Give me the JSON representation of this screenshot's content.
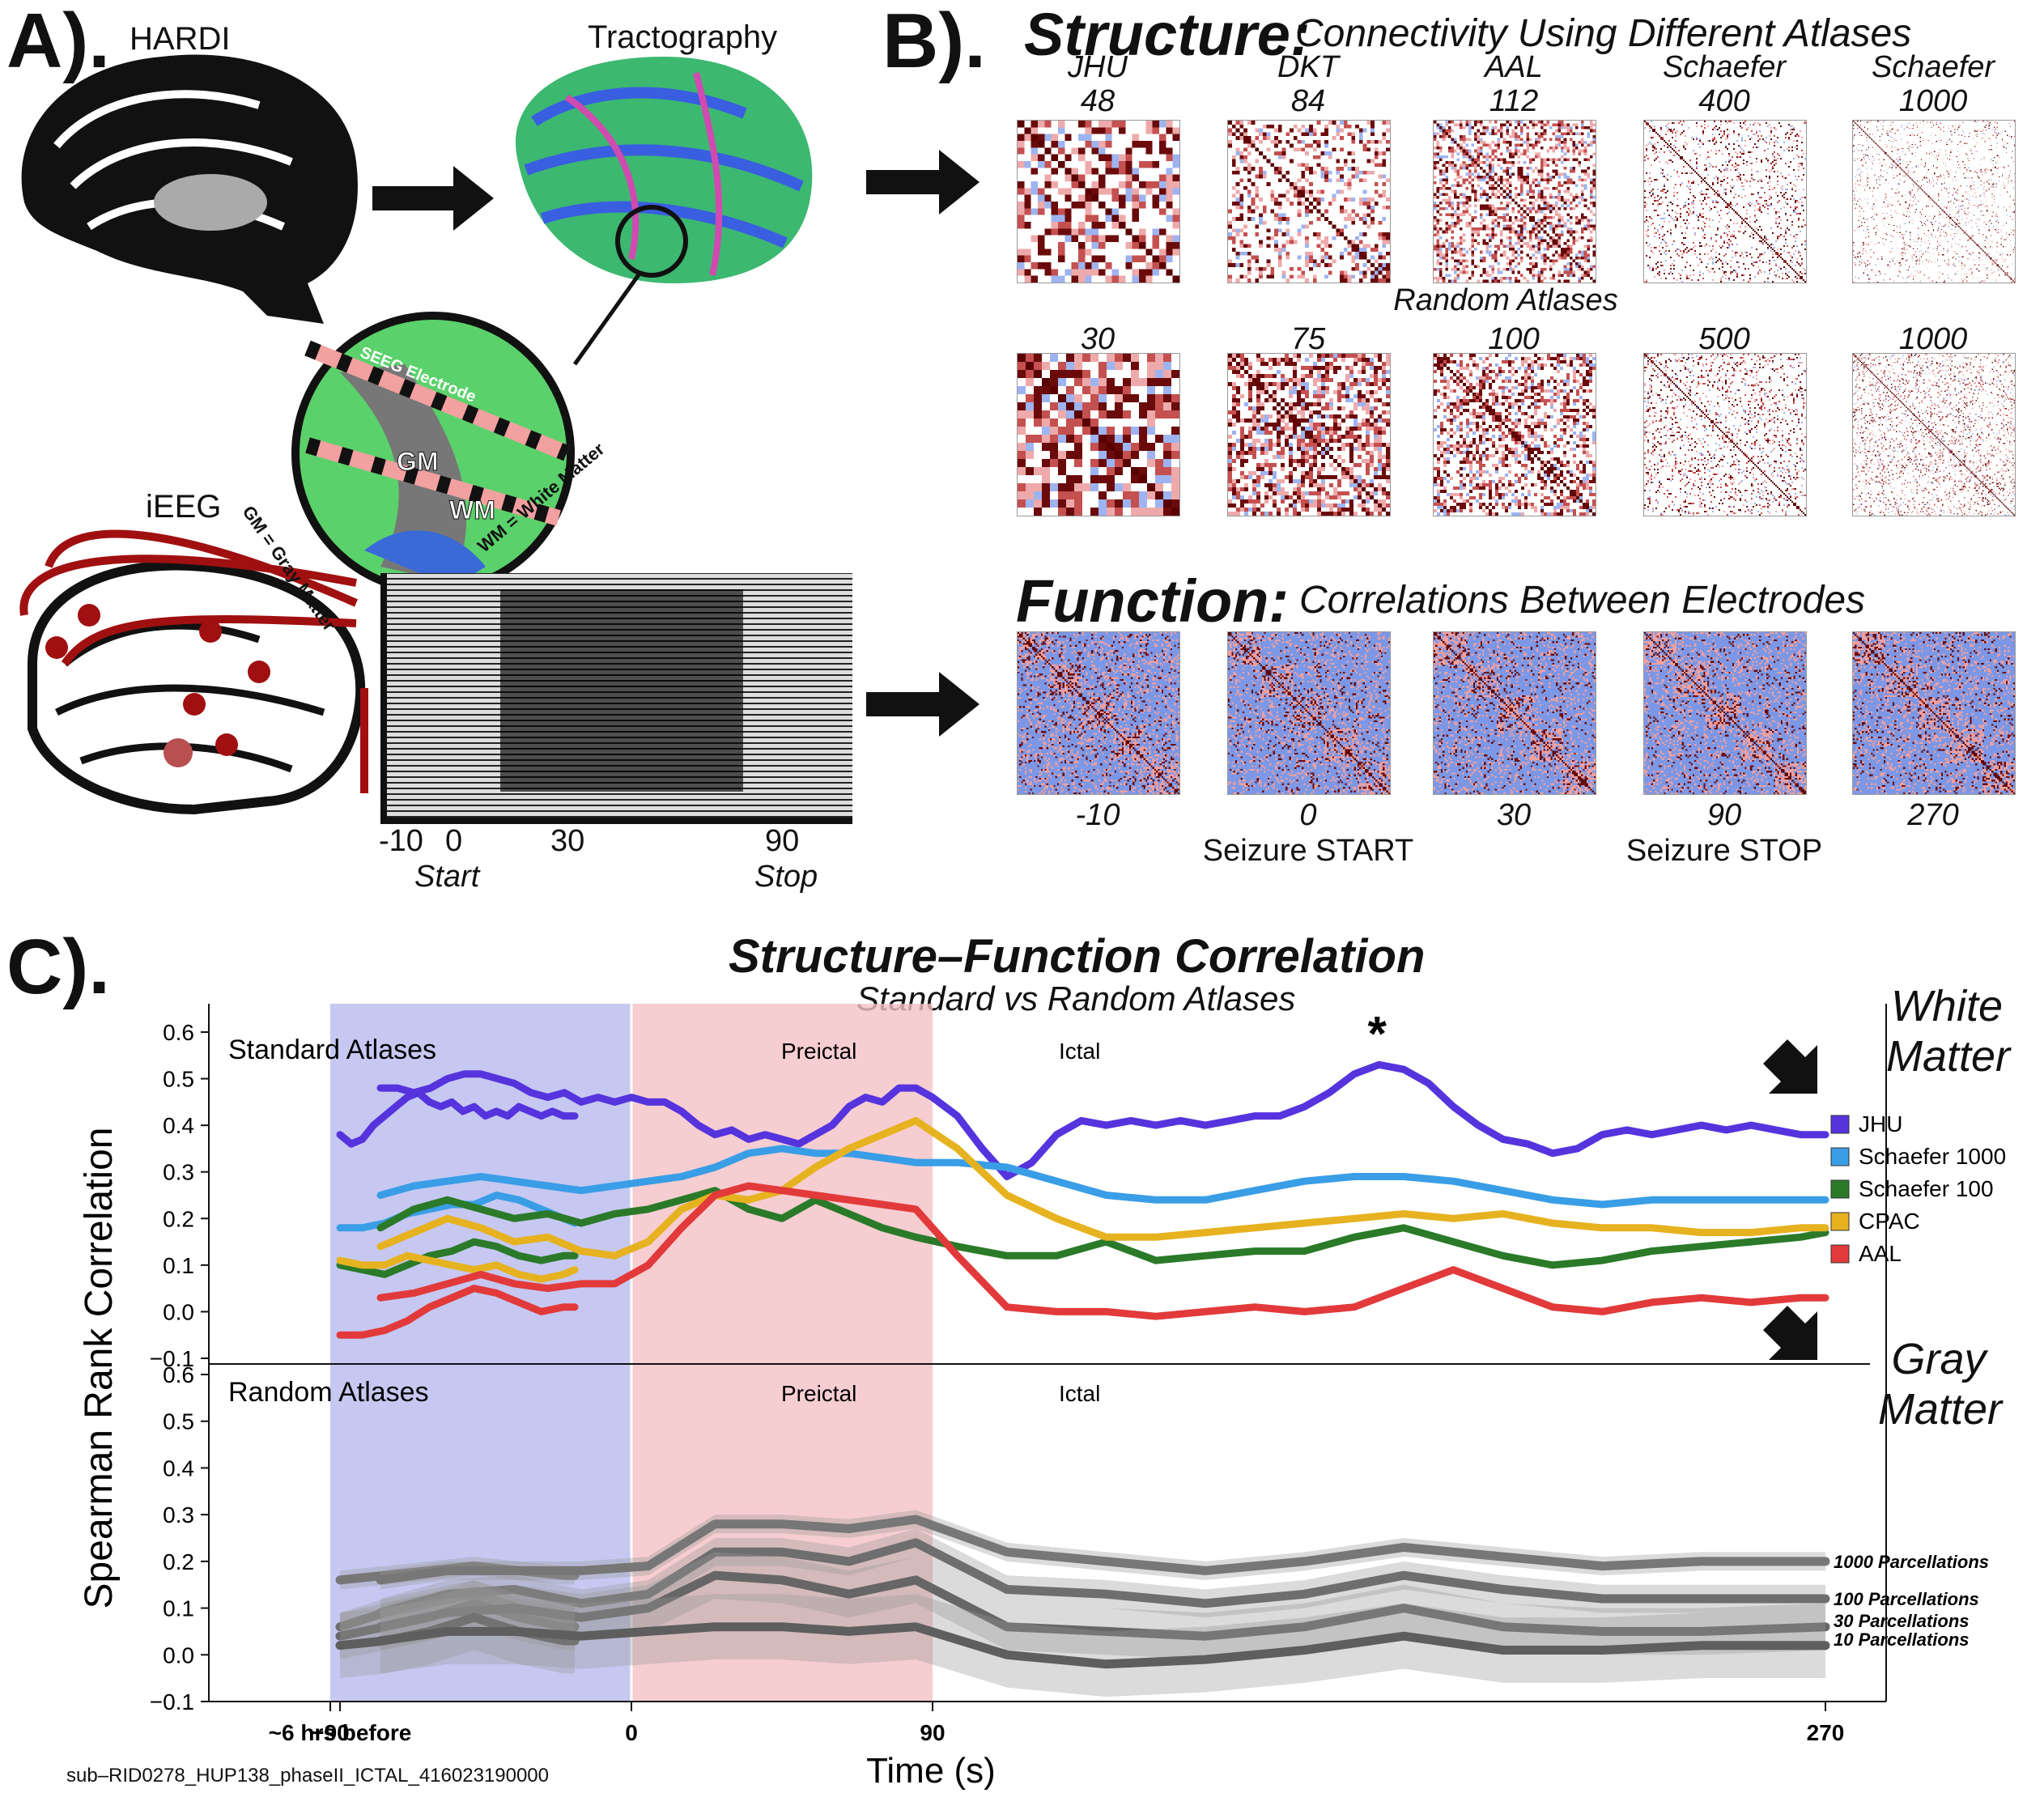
{
  "panel_a": {
    "letter": "A).",
    "hardi_label": "HARDI",
    "tractography_label": "Tractography",
    "ieeg_label": "iEEG",
    "inset": {
      "electrode": "SEEG Electrode",
      "gm": "GM",
      "wm": "WM",
      "gm_def": "GM = Gray Matter",
      "wm_def": "WM = White Matter"
    },
    "eeg_ticks": [
      "-10",
      "0",
      "30",
      "90"
    ],
    "eeg_start": "Start",
    "eeg_stop": "Stop",
    "colors": {
      "electrode": "#a01010"
    }
  },
  "panel_b": {
    "letter": "B).",
    "structure_title": "Structure:",
    "structure_sub": "Connectivity Using Different Atlases",
    "standard_atlases": [
      {
        "name": "JHU",
        "n": "48"
      },
      {
        "name": "DKT",
        "n": "84"
      },
      {
        "name": "AAL",
        "n": "112"
      },
      {
        "name": "Schaefer",
        "n": "400"
      },
      {
        "name": "Schaefer",
        "n": "1000"
      }
    ],
    "random_label": "Random Atlases",
    "random_atlases": [
      "30",
      "75",
      "100",
      "500",
      "1000"
    ],
    "function_title": "Function:",
    "function_sub": "Correlations Between Electrodes",
    "function_times": [
      "-10",
      "0",
      "30",
      "90",
      "270"
    ],
    "function_events": [
      "",
      "Seizure START",
      "",
      "Seizure STOP",
      ""
    ]
  },
  "panel_c": {
    "letter": "C).",
    "title": "Structure–Function Correlation",
    "subtitle": "Standard vs Random Atlases",
    "y_axis_label": "Spearman Rank Correlation",
    "x_axis_label": "Time (s)",
    "footnote": "sub–RID0278_HUP138_phaseII_ICTAL_416023190000",
    "star": "*",
    "white_matter": "White Matter",
    "gray_matter": "Gray Matter",
    "preictal_label": "Preictal",
    "ictal_label": "Ictal",
    "colors": {
      "preictal": "#b3b6ee",
      "ictal": "#f4c0c4"
    }
  },
  "chart_data": [
    {
      "type": "line",
      "title": "Standard Atlases",
      "ylabel": "Spearman Rank Correlation",
      "ylim": [
        -0.1,
        0.6
      ],
      "yticks": [
        "0.6",
        "0.5",
        "0.4",
        "0.3",
        "0.2",
        "0.1",
        "0.0",
        "−0.1"
      ],
      "xticks": [
        "~6 hrs before",
        "−90",
        "0",
        "90",
        "270"
      ],
      "grid": false,
      "legend": "right",
      "series": [
        {
          "name": "JHU",
          "color": "#5533dd",
          "seg1_x": [
            -600,
            -590,
            -580,
            -570,
            -560,
            -550,
            -540,
            -530,
            -520,
            -510,
            -500,
            -490,
            -480,
            -470,
            -460,
            -450,
            -440,
            -430,
            -420,
            -410,
            -400,
            -390
          ],
          "seg1_y": [
            0.38,
            0.36,
            0.37,
            0.4,
            0.42,
            0.44,
            0.46,
            0.47,
            0.45,
            0.44,
            0.45,
            0.43,
            0.44,
            0.42,
            0.43,
            0.42,
            0.44,
            0.43,
            0.42,
            0.43,
            0.42,
            0.42
          ],
          "x": [
            -75,
            -70,
            -65,
            -60,
            -55,
            -50,
            -45,
            -40,
            -35,
            -30,
            -25,
            -20,
            -15,
            -10,
            -5,
            0,
            5,
            10,
            15,
            20,
            25,
            30,
            35,
            40,
            45,
            50,
            55,
            60,
            65,
            70,
            75,
            80,
            85,
            90,
            95,
            100,
            105,
            110,
            115,
            120,
            125,
            130,
            135,
            140,
            145,
            150,
            155,
            160,
            165,
            170,
            175,
            180,
            185,
            190,
            195,
            200,
            205,
            210,
            215,
            220,
            225,
            230,
            235,
            240,
            245,
            250,
            255,
            260,
            265,
            270
          ],
          "y": [
            0.48,
            0.48,
            0.47,
            0.48,
            0.5,
            0.51,
            0.51,
            0.5,
            0.49,
            0.47,
            0.46,
            0.47,
            0.45,
            0.46,
            0.45,
            0.46,
            0.45,
            0.45,
            0.43,
            0.4,
            0.38,
            0.39,
            0.37,
            0.38,
            0.37,
            0.36,
            0.38,
            0.4,
            0.44,
            0.46,
            0.45,
            0.48,
            0.48,
            0.46,
            0.42,
            0.35,
            0.29,
            0.32,
            0.38,
            0.41,
            0.4,
            0.41,
            0.4,
            0.41,
            0.4,
            0.41,
            0.42,
            0.42,
            0.44,
            0.47,
            0.51,
            0.53,
            0.52,
            0.49,
            0.44,
            0.4,
            0.37,
            0.36,
            0.34,
            0.35,
            0.38,
            0.39,
            0.38,
            0.39,
            0.4,
            0.39,
            0.4,
            0.39,
            0.38,
            0.38
          ]
        },
        {
          "name": "Schaefer 1000",
          "color": "#3a9ee6",
          "seg1_x": [
            -600,
            -580,
            -560,
            -540,
            -520,
            -500,
            -480,
            -460,
            -440,
            -420,
            -400,
            -390
          ],
          "seg1_y": [
            0.18,
            0.18,
            0.19,
            0.21,
            0.22,
            0.23,
            0.23,
            0.25,
            0.24,
            0.22,
            0.2,
            0.19
          ],
          "x": [
            -75,
            -65,
            -55,
            -45,
            -35,
            -25,
            -15,
            -5,
            5,
            15,
            25,
            35,
            45,
            55,
            65,
            75,
            85,
            95,
            105,
            115,
            125,
            135,
            145,
            155,
            165,
            175,
            185,
            195,
            205,
            215,
            225,
            235,
            245,
            255,
            265,
            270
          ],
          "y": [
            0.25,
            0.27,
            0.28,
            0.29,
            0.28,
            0.27,
            0.26,
            0.27,
            0.28,
            0.29,
            0.31,
            0.34,
            0.35,
            0.34,
            0.34,
            0.33,
            0.32,
            0.32,
            0.31,
            0.28,
            0.25,
            0.24,
            0.24,
            0.26,
            0.28,
            0.29,
            0.29,
            0.28,
            0.26,
            0.24,
            0.23,
            0.24,
            0.24,
            0.24,
            0.24,
            0.24
          ]
        },
        {
          "name": "Schaefer 100",
          "color": "#2a7a2a",
          "seg1_x": [
            -600,
            -580,
            -560,
            -540,
            -520,
            -500,
            -480,
            -460,
            -440,
            -420,
            -400,
            -390
          ],
          "seg1_y": [
            0.1,
            0.09,
            0.08,
            0.1,
            0.12,
            0.13,
            0.15,
            0.14,
            0.12,
            0.11,
            0.12,
            0.12
          ],
          "x": [
            -75,
            -65,
            -55,
            -45,
            -35,
            -25,
            -15,
            -5,
            5,
            15,
            25,
            35,
            45,
            55,
            65,
            75,
            85,
            95,
            105,
            115,
            125,
            135,
            145,
            155,
            165,
            175,
            185,
            195,
            205,
            215,
            225,
            235,
            245,
            255,
            265,
            270
          ],
          "y": [
            0.18,
            0.22,
            0.24,
            0.22,
            0.2,
            0.21,
            0.19,
            0.21,
            0.22,
            0.24,
            0.26,
            0.22,
            0.2,
            0.24,
            0.21,
            0.18,
            0.16,
            0.14,
            0.12,
            0.12,
            0.15,
            0.11,
            0.12,
            0.13,
            0.13,
            0.16,
            0.18,
            0.15,
            0.12,
            0.1,
            0.11,
            0.13,
            0.14,
            0.15,
            0.16,
            0.17
          ]
        },
        {
          "name": "CPAC",
          "color": "#e6b220",
          "seg1_x": [
            -600,
            -580,
            -560,
            -540,
            -520,
            -500,
            -480,
            -460,
            -440,
            -420,
            -400,
            -390
          ],
          "seg1_y": [
            0.11,
            0.1,
            0.1,
            0.12,
            0.11,
            0.1,
            0.09,
            0.1,
            0.08,
            0.07,
            0.08,
            0.09
          ],
          "x": [
            -75,
            -65,
            -55,
            -45,
            -35,
            -25,
            -15,
            -5,
            5,
            15,
            25,
            35,
            45,
            55,
            65,
            75,
            85,
            95,
            105,
            115,
            125,
            135,
            145,
            155,
            165,
            175,
            185,
            195,
            205,
            215,
            225,
            235,
            245,
            255,
            265,
            270
          ],
          "y": [
            0.14,
            0.17,
            0.2,
            0.18,
            0.15,
            0.16,
            0.13,
            0.12,
            0.15,
            0.22,
            0.25,
            0.24,
            0.26,
            0.31,
            0.35,
            0.38,
            0.41,
            0.35,
            0.25,
            0.2,
            0.16,
            0.16,
            0.17,
            0.18,
            0.19,
            0.2,
            0.21,
            0.2,
            0.21,
            0.19,
            0.18,
            0.18,
            0.17,
            0.17,
            0.18,
            0.18
          ]
        },
        {
          "name": "AAL",
          "color": "#e23a3a",
          "seg1_x": [
            -600,
            -580,
            -560,
            -540,
            -520,
            -500,
            -480,
            -460,
            -440,
            -420,
            -400,
            -390
          ],
          "seg1_y": [
            -0.05,
            -0.05,
            -0.04,
            -0.02,
            0.01,
            0.03,
            0.05,
            0.04,
            0.02,
            0.0,
            0.01,
            0.01
          ],
          "x": [
            -75,
            -65,
            -55,
            -45,
            -35,
            -25,
            -15,
            -5,
            5,
            15,
            25,
            35,
            45,
            55,
            65,
            75,
            85,
            95,
            105,
            115,
            125,
            135,
            145,
            155,
            165,
            175,
            185,
            195,
            205,
            215,
            225,
            235,
            245,
            255,
            265,
            270
          ],
          "y": [
            0.03,
            0.04,
            0.06,
            0.08,
            0.06,
            0.05,
            0.06,
            0.06,
            0.1,
            0.18,
            0.25,
            0.27,
            0.26,
            0.25,
            0.24,
            0.23,
            0.22,
            0.12,
            0.01,
            0.0,
            0.0,
            -0.01,
            0.0,
            0.01,
            0.0,
            0.01,
            0.05,
            0.09,
            0.05,
            0.01,
            0.0,
            0.02,
            0.03,
            0.02,
            0.03,
            0.03
          ]
        }
      ]
    },
    {
      "type": "area",
      "title": "Random Atlases",
      "ylim": [
        -0.1,
        0.6
      ],
      "yticks": [
        "0.6",
        "0.5",
        "0.4",
        "0.3",
        "0.2",
        "0.1",
        "0.0",
        "−0.1"
      ],
      "xticks": [
        "~6 hrs before",
        "−90",
        "0",
        "90",
        "270"
      ],
      "xlabel": "Time (s)",
      "series": [
        {
          "name": "1000 Parcellations",
          "seg1_x": [
            -600,
            -560,
            -520,
            -480,
            -440,
            -400,
            -390
          ],
          "seg1_y": [
            0.16,
            0.17,
            0.18,
            0.19,
            0.18,
            0.17,
            0.17
          ],
          "x": [
            -75,
            -55,
            -35,
            -15,
            5,
            25,
            45,
            65,
            85,
            105,
            125,
            145,
            165,
            185,
            205,
            225,
            245,
            270
          ],
          "y": [
            0.16,
            0.18,
            0.18,
            0.18,
            0.19,
            0.28,
            0.28,
            0.27,
            0.29,
            0.22,
            0.2,
            0.18,
            0.2,
            0.23,
            0.21,
            0.19,
            0.2,
            0.2
          ],
          "band": 0.02
        },
        {
          "name": "100 Parcellations",
          "seg1_x": [
            -600,
            -560,
            -520,
            -480,
            -440,
            -400,
            -390
          ],
          "seg1_y": [
            0.06,
            0.09,
            0.11,
            0.13,
            0.1,
            0.08,
            0.08
          ],
          "x": [
            -75,
            -55,
            -35,
            -15,
            5,
            25,
            45,
            65,
            85,
            105,
            125,
            145,
            165,
            185,
            205,
            225,
            245,
            270
          ],
          "y": [
            0.09,
            0.13,
            0.14,
            0.11,
            0.13,
            0.22,
            0.22,
            0.2,
            0.24,
            0.14,
            0.13,
            0.11,
            0.13,
            0.17,
            0.14,
            0.12,
            0.12,
            0.12
          ],
          "band": 0.03
        },
        {
          "name": "30 Parcellations",
          "seg1_x": [
            -600,
            -560,
            -520,
            -480,
            -440,
            -400,
            -390
          ],
          "seg1_y": [
            0.04,
            0.06,
            0.08,
            0.11,
            0.08,
            0.06,
            0.06
          ],
          "x": [
            -75,
            -55,
            -35,
            -15,
            5,
            25,
            45,
            65,
            85,
            105,
            125,
            145,
            165,
            185,
            205,
            225,
            245,
            270
          ],
          "y": [
            0.06,
            0.09,
            0.1,
            0.08,
            0.1,
            0.17,
            0.16,
            0.13,
            0.16,
            0.06,
            0.05,
            0.04,
            0.06,
            0.1,
            0.06,
            0.05,
            0.05,
            0.06
          ],
          "band": 0.05
        },
        {
          "name": "10 Parcellations",
          "seg1_x": [
            -600,
            -560,
            -520,
            -480,
            -440,
            -400,
            -390
          ],
          "seg1_y": [
            0.02,
            0.03,
            0.05,
            0.08,
            0.05,
            0.03,
            0.03
          ],
          "x": [
            -75,
            -55,
            -35,
            -15,
            5,
            25,
            45,
            65,
            85,
            105,
            125,
            145,
            165,
            185,
            205,
            225,
            245,
            270
          ],
          "y": [
            0.03,
            0.05,
            0.05,
            0.04,
            0.05,
            0.06,
            0.06,
            0.05,
            0.06,
            0.0,
            -0.02,
            -0.01,
            0.01,
            0.04,
            0.01,
            0.01,
            0.02,
            0.02
          ],
          "band": 0.07
        }
      ]
    }
  ]
}
